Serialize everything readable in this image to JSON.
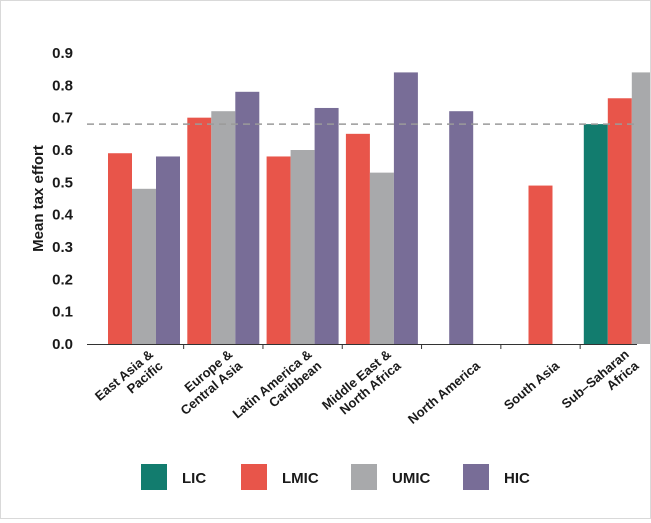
{
  "chart_data": {
    "type": "bar",
    "ylabel": "Mean tax effort",
    "ylim": [
      0,
      0.9
    ],
    "yticks": [
      "0.0",
      "0.1",
      "0.2",
      "0.3",
      "0.4",
      "0.5",
      "0.6",
      "0.7",
      "0.8",
      "0.9"
    ],
    "reference_line": 0.68,
    "categories": [
      [
        "East Asia &",
        "Pacific"
      ],
      [
        "Europe &",
        "Central Asia"
      ],
      [
        "Latin America &",
        "Caribbean"
      ],
      [
        "Middle East &",
        "North Africa"
      ],
      [
        "North America"
      ],
      [
        "South Asia"
      ],
      [
        "Sub–Saharan",
        "Africa"
      ]
    ],
    "series": [
      {
        "name": "LIC",
        "color": "#127C6E",
        "values": [
          null,
          null,
          null,
          null,
          null,
          null,
          0.68
        ]
      },
      {
        "name": "LMIC",
        "color": "#E8554A",
        "values": [
          0.59,
          0.7,
          0.58,
          0.65,
          null,
          0.49,
          0.76
        ]
      },
      {
        "name": "UMIC",
        "color": "#A8A9AB",
        "values": [
          0.48,
          0.72,
          0.6,
          0.53,
          null,
          null,
          0.84
        ]
      },
      {
        "name": "HIC",
        "color": "#786D97",
        "values": [
          0.58,
          0.78,
          0.73,
          0.84,
          0.72,
          null,
          null
        ]
      }
    ],
    "legend_position": "bottom"
  }
}
